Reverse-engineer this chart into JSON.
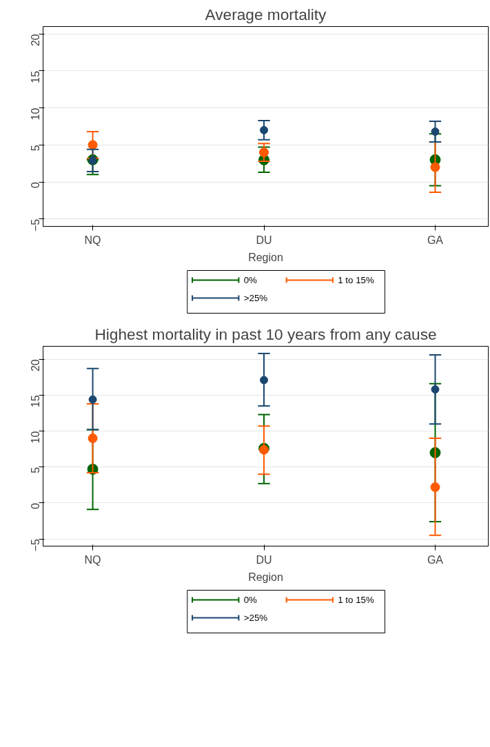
{
  "chart_data": [
    {
      "type": "scatter",
      "title": "Average mortality",
      "xlabel": "Region",
      "categories": [
        "NQ",
        "DU",
        "GA"
      ],
      "ylim": [
        -6,
        21
      ],
      "yticks": [
        -5,
        0,
        5,
        10,
        15,
        20
      ],
      "grid": "y",
      "legend": "bottom",
      "marker": "circle",
      "series": [
        {
          "name": "0%",
          "color": "#006400",
          "values": [
            3.0,
            3.0,
            3.0
          ],
          "errors": [
            [
              1.0,
              3.0
            ],
            [
              1.3,
              4.7
            ],
            [
              -0.5,
              6.5
            ]
          ]
        },
        {
          "name": "1 to 15%",
          "color": "#ff5a00",
          "values": [
            5.0,
            4.0,
            2.0
          ],
          "errors": [
            [
              3.2,
              6.8
            ],
            [
              2.8,
              5.2
            ],
            [
              -1.4,
              5.4
            ]
          ]
        },
        {
          "name": ">25%",
          "color": "#1a476f",
          "values": [
            2.9,
            7.0,
            6.8
          ],
          "errors": [
            [
              1.4,
              4.4
            ],
            [
              5.7,
              8.3
            ],
            [
              5.4,
              8.2
            ]
          ]
        }
      ]
    },
    {
      "type": "scatter",
      "title": "Highest mortality in past 10 years from any cause",
      "xlabel": "Region",
      "categories": [
        "NQ",
        "DU",
        "GA"
      ],
      "ylim": [
        -6,
        21.8
      ],
      "yticks": [
        -5,
        0,
        5,
        10,
        15,
        20
      ],
      "grid": "y",
      "legend": "bottom",
      "marker": "circle",
      "series": [
        {
          "name": "0%",
          "color": "#006400",
          "values": [
            4.7,
            7.6,
            7.0
          ],
          "errors": [
            [
              -0.9,
              10.2
            ],
            [
              2.7,
              12.3
            ],
            [
              -2.6,
              16.6
            ]
          ]
        },
        {
          "name": "1 to 15%",
          "color": "#ff5a00",
          "values": [
            9.0,
            7.4,
            2.2
          ],
          "errors": [
            [
              4.2,
              13.8
            ],
            [
              4.0,
              10.7
            ],
            [
              -4.5,
              9.0
            ]
          ]
        },
        {
          "name": ">25%",
          "color": "#1a476f",
          "values": [
            14.4,
            17.1,
            15.8
          ],
          "errors": [
            [
              10.2,
              18.7
            ],
            [
              13.5,
              20.8
            ],
            [
              11.0,
              20.6
            ]
          ]
        }
      ]
    }
  ]
}
